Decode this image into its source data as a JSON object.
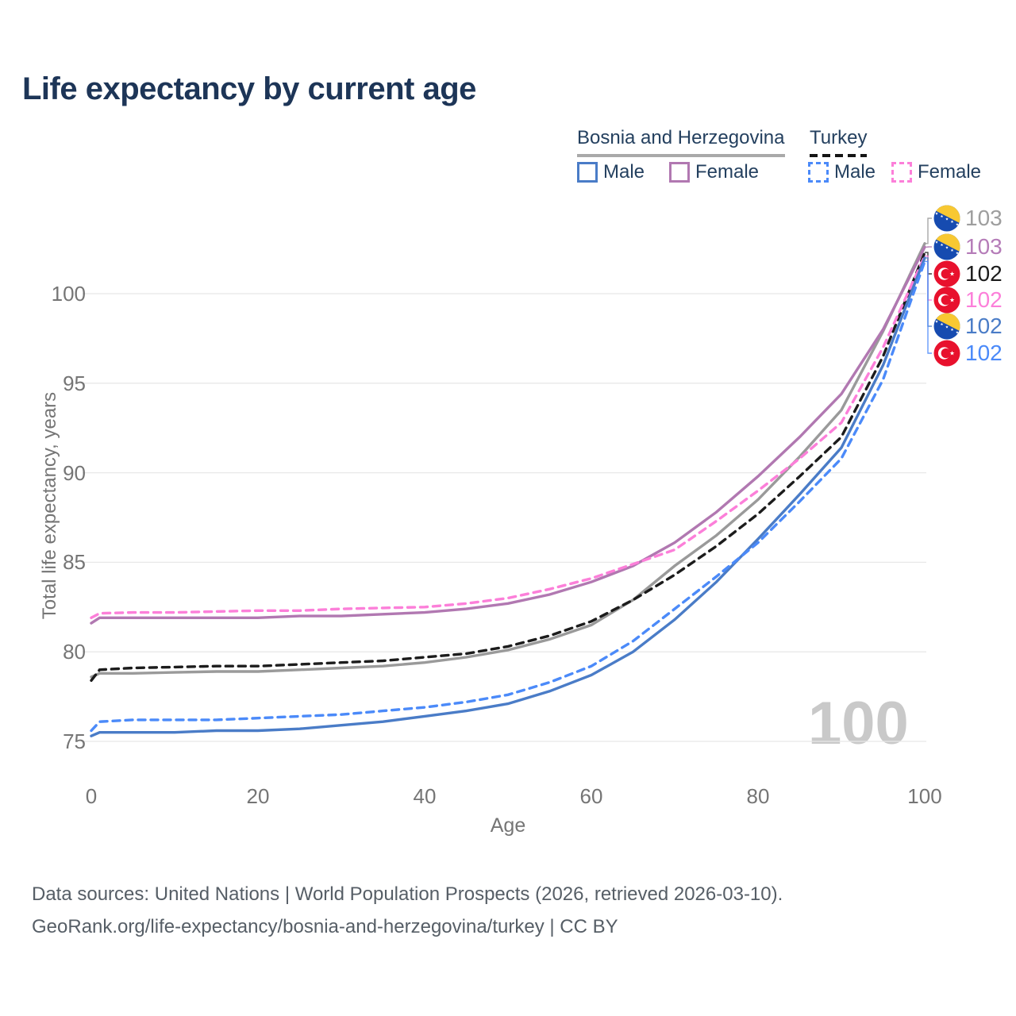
{
  "title": "Life expectancy by current age",
  "legend": {
    "groups": [
      {
        "label": "Bosnia and Herzegovina",
        "line_style": "solid",
        "underline_color": "#a9a9a9"
      },
      {
        "label": "Turkey",
        "line_style": "dashed",
        "underline_color": "#151515"
      }
    ],
    "items": [
      {
        "group": "Bosnia and Herzegovina",
        "label": "Male",
        "color": "#4a7cc7",
        "dashed": false
      },
      {
        "group": "Bosnia and Herzegovina",
        "label": "Female",
        "color": "#b178b1",
        "dashed": false
      },
      {
        "group": "Turkey",
        "label": "Male",
        "color": "#4b8af9",
        "dashed": true
      },
      {
        "group": "Turkey",
        "label": "Female",
        "color": "#fc7fd9",
        "dashed": true
      }
    ]
  },
  "watermark": "100",
  "chart_data": {
    "type": "line",
    "title": "Life expectancy by current age",
    "xlabel": "Age",
    "ylabel": "Total life expectancy, years",
    "xlim": [
      0,
      100
    ],
    "ylim": [
      73,
      104
    ],
    "xticks": [
      0,
      20,
      40,
      60,
      80,
      100
    ],
    "yticks": [
      75,
      80,
      85,
      90,
      95,
      100
    ],
    "grid": "horizontal-only",
    "legend_position": "top-right",
    "x": [
      0,
      1,
      5,
      10,
      15,
      20,
      25,
      30,
      35,
      40,
      45,
      50,
      55,
      60,
      65,
      70,
      75,
      80,
      85,
      90,
      95,
      100
    ],
    "series": [
      {
        "name": "Bosnia and Herzegovina — both sexes",
        "color": "#9a9a9a",
        "dashed": false,
        "end_label": "103",
        "end_label_color": "#9e9e9e",
        "flag_icon": "bosnia-herzegovina-flag-icon",
        "values": [
          78.6,
          78.8,
          78.8,
          78.85,
          78.9,
          78.9,
          79.0,
          79.1,
          79.2,
          79.4,
          79.7,
          80.1,
          80.7,
          81.5,
          82.9,
          84.8,
          86.5,
          88.5,
          90.9,
          93.5,
          97.9,
          102.8
        ]
      },
      {
        "name": "Turkey — both sexes",
        "color": "#1c1c1c",
        "dashed": true,
        "end_label": "102",
        "end_label_color": "#1c1c1c",
        "flag_icon": "turkey-flag-icon",
        "values": [
          78.4,
          79.0,
          79.1,
          79.15,
          79.2,
          79.2,
          79.3,
          79.4,
          79.5,
          79.7,
          79.9,
          80.3,
          80.9,
          81.7,
          82.9,
          84.3,
          85.9,
          87.7,
          89.8,
          92.0,
          96.5,
          102.3
        ]
      },
      {
        "name": "Bosnia and Herzegovina — female",
        "color": "#b178b1",
        "dashed": false,
        "end_label": "103",
        "end_label_color": "#b57cb8",
        "flag_icon": "bosnia-herzegovina-flag-icon",
        "values": [
          81.6,
          81.9,
          81.9,
          81.9,
          81.9,
          81.9,
          82.0,
          82.0,
          82.1,
          82.2,
          82.4,
          82.7,
          83.2,
          83.9,
          84.8,
          86.1,
          87.8,
          89.8,
          92.0,
          94.4,
          98.0,
          102.6
        ]
      },
      {
        "name": "Turkey — female",
        "color": "#fc7fd9",
        "dashed": true,
        "end_label": "102",
        "end_label_color": "#fc7fd9",
        "flag_icon": "turkey-flag-icon",
        "values": [
          81.9,
          82.15,
          82.2,
          82.2,
          82.25,
          82.3,
          82.3,
          82.4,
          82.45,
          82.5,
          82.7,
          83.0,
          83.5,
          84.1,
          84.9,
          85.7,
          87.3,
          89.0,
          90.8,
          92.8,
          97.0,
          102.1
        ]
      },
      {
        "name": "Bosnia and Herzegovina — male",
        "color": "#4a7cc7",
        "dashed": false,
        "end_label": "102",
        "end_label_color": "#4a7cc7",
        "flag_icon": "bosnia-herzegovina-flag-icon",
        "values": [
          75.3,
          75.5,
          75.5,
          75.5,
          75.6,
          75.6,
          75.7,
          75.9,
          76.1,
          76.4,
          76.7,
          77.1,
          77.8,
          78.7,
          80.0,
          81.8,
          83.9,
          86.3,
          88.8,
          91.4,
          96.0,
          102.0
        ]
      },
      {
        "name": "Turkey — male",
        "color": "#4b8af9",
        "dashed": true,
        "end_label": "102",
        "end_label_color": "#4b8af9",
        "flag_icon": "turkey-flag-icon",
        "values": [
          75.6,
          76.1,
          76.2,
          76.2,
          76.2,
          76.3,
          76.4,
          76.5,
          76.7,
          76.9,
          77.2,
          77.6,
          78.3,
          79.2,
          80.6,
          82.4,
          84.2,
          86.1,
          88.4,
          90.8,
          95.2,
          101.8
        ]
      }
    ],
    "end_labels_order": [
      {
        "flag_icon": "bosnia-herzegovina-flag-icon",
        "value": "103",
        "color": "#9e9e9e"
      },
      {
        "flag_icon": "bosnia-herzegovina-flag-icon",
        "value": "103",
        "color": "#b57cb8"
      },
      {
        "flag_icon": "turkey-flag-icon",
        "value": "102",
        "color": "#1c1c1c"
      },
      {
        "flag_icon": "turkey-flag-icon",
        "value": "102",
        "color": "#fc7fd9"
      },
      {
        "flag_icon": "bosnia-herzegovina-flag-icon",
        "value": "102",
        "color": "#4a7cc7"
      },
      {
        "flag_icon": "turkey-flag-icon",
        "value": "102",
        "color": "#4b8af9"
      }
    ]
  },
  "footer": {
    "line1": "Data sources: United Nations | World Population Prospects (2026, retrieved 2026-03-10).",
    "line2": "GeoRank.org/life-expectancy/bosnia-and-herzegovina/turkey | CC BY"
  }
}
